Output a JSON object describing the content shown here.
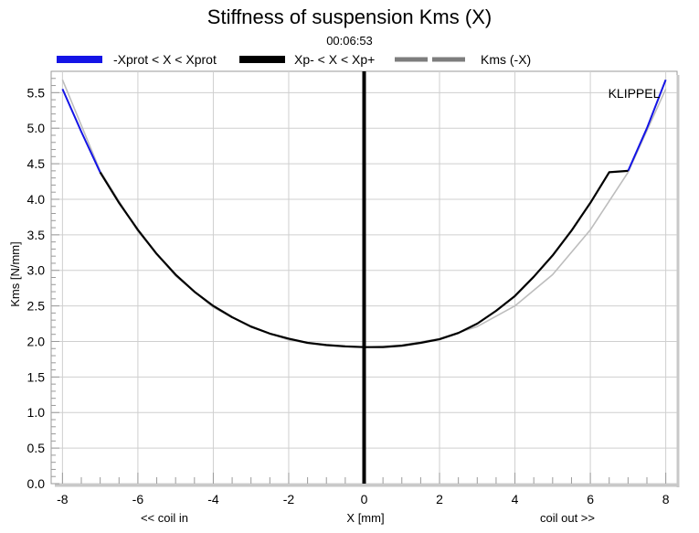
{
  "chart_data": {
    "type": "line",
    "title": "Stiffness of suspension Kms (X)",
    "subtitle": "00:06:53",
    "xlabel": "X [mm]",
    "ylabel": "Kms [N/mm]",
    "x_left_note": "<< coil in",
    "x_right_note": "coil out >>",
    "watermark": "KLIPPEL",
    "xlim": [
      -8.3,
      8.3
    ],
    "ylim": [
      0.0,
      5.8
    ],
    "xticks": [
      -8,
      -6,
      -4,
      -2,
      0,
      2,
      4,
      6,
      8
    ],
    "yticks": [
      0.0,
      0.5,
      1.0,
      1.5,
      2.0,
      2.5,
      3.0,
      3.5,
      4.0,
      4.5,
      5.0,
      5.5
    ],
    "grid": true,
    "legend_position": "top",
    "vertical_marker_x": 0.0,
    "series": [
      {
        "name": "-Xprot < X < Xprot",
        "color": "#1414e6",
        "x": [
          -8.0,
          -7.5,
          -7.0,
          7.0,
          7.5,
          8.0
        ],
        "y": [
          5.55,
          4.95,
          4.38,
          4.4,
          5.0,
          5.68
        ]
      },
      {
        "name": "Xp- < X < Xp+",
        "color": "#000000",
        "x": [
          -7.0,
          -6.5,
          -6.0,
          -5.5,
          -5.0,
          -4.5,
          -4.0,
          -3.5,
          -3.0,
          -2.5,
          -2.0,
          -1.5,
          -1.0,
          -0.5,
          0.0,
          0.5,
          1.0,
          1.5,
          2.0,
          2.5,
          3.0,
          3.5,
          4.0,
          4.5,
          5.0,
          5.5,
          6.0,
          6.5,
          7.0
        ],
        "y": [
          4.38,
          3.95,
          3.57,
          3.23,
          2.94,
          2.7,
          2.5,
          2.34,
          2.21,
          2.11,
          2.04,
          1.98,
          1.95,
          1.93,
          1.92,
          1.92,
          1.94,
          1.98,
          2.03,
          2.12,
          2.25,
          2.43,
          2.64,
          2.91,
          3.21,
          3.56,
          3.95,
          4.38,
          4.4
        ]
      },
      {
        "name": "Kms (-X)",
        "color": "#bdbdbd",
        "x": [
          -8.0,
          -7.0,
          -6.0,
          -5.0,
          -4.0,
          -3.0,
          -2.0,
          -1.0,
          0.0,
          1.0,
          2.0,
          3.0,
          4.0,
          5.0,
          6.0,
          7.0,
          8.0
        ],
        "y": [
          5.68,
          4.4,
          3.55,
          2.92,
          2.48,
          2.2,
          2.02,
          1.94,
          1.92,
          1.95,
          2.04,
          2.21,
          2.5,
          2.94,
          3.57,
          4.38,
          5.55
        ]
      }
    ]
  }
}
